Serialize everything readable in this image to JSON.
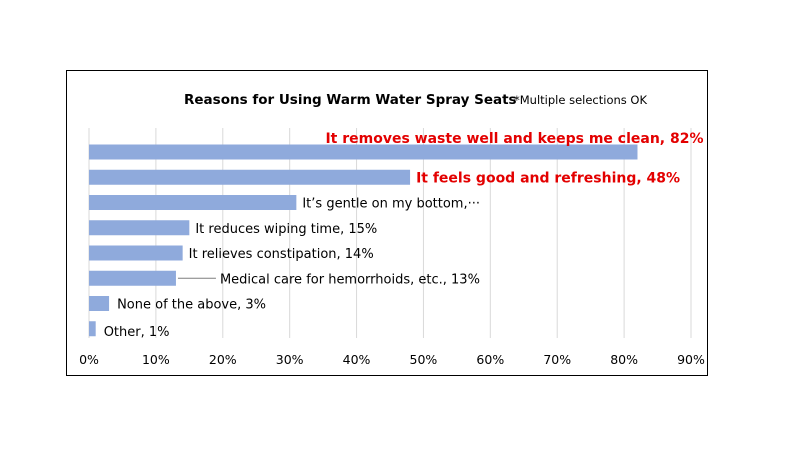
{
  "chart_data": {
    "type": "bar",
    "orientation": "horizontal",
    "title": "Reasons for Using Warm Water Spray Seats",
    "subtitle": "*Multiple selections OK",
    "xlabel": "",
    "ylabel": "",
    "xlim": [
      0,
      90
    ],
    "grid": true,
    "legend": "none",
    "tick_labels": [
      "0%",
      "10%",
      "20%",
      "30%",
      "40%",
      "50%",
      "60%",
      "70%",
      "80%",
      "90%"
    ],
    "bar_color": "#8faadc",
    "highlight_color": "#e30000",
    "categories": [
      "It removes waste well and keeps me clean",
      "It feels good and refreshing",
      "It's gentle on my bottom",
      "It reduces wiping time",
      "It relieves constipation",
      "Medical care for hemorrhoids, etc.",
      "None of the above",
      "Other"
    ],
    "values": [
      82,
      48,
      31,
      15,
      14,
      13,
      3,
      1
    ],
    "data_labels": [
      "It removes waste well and keeps me clean, 82%",
      "It feels good and refreshing, 48%",
      "It’s gentle on my bottom,···",
      "It reduces wiping time, 15%",
      "It relieves constipation, 14%",
      "Medical care for hemorrhoids, etc., 13%",
      "None of the above, 3%",
      "Other, 1%"
    ],
    "highlighted": [
      true,
      true,
      false,
      false,
      false,
      false,
      false,
      false
    ]
  }
}
